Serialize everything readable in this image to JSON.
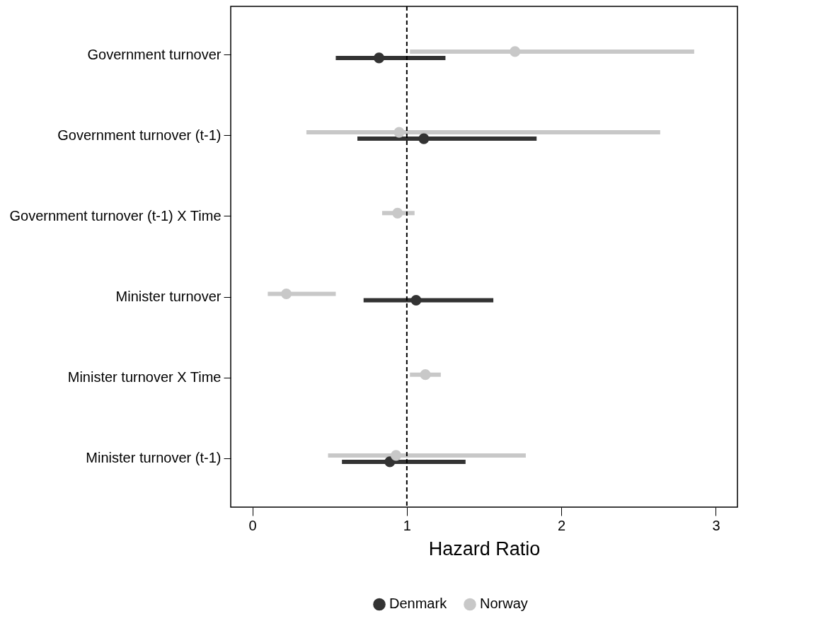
{
  "chart_data": {
    "type": "scatter",
    "orientation": "horizontal",
    "xlabel": "Hazard Ratio",
    "categories": [
      "Government turnover",
      "Government turnover (t-1)",
      "Government turnover (t-1) X Time",
      "Minister turnover",
      "Minister turnover X Time",
      "Minister turnover (t-1)"
    ],
    "series": [
      {
        "name": "Denmark",
        "color": "#333333",
        "values": [
          0.82,
          1.11,
          null,
          1.06,
          null,
          0.89
        ],
        "errors": [
          [
            0.54,
            1.25
          ],
          [
            0.68,
            1.84
          ],
          null,
          [
            0.72,
            1.56
          ],
          null,
          [
            0.58,
            1.38
          ]
        ]
      },
      {
        "name": "Norway",
        "color": "#c8c8c8",
        "values": [
          1.7,
          0.95,
          0.94,
          0.22,
          1.12,
          0.93
        ],
        "errors": [
          [
            1.02,
            2.86
          ],
          [
            0.35,
            2.64
          ],
          [
            0.84,
            1.05
          ],
          [
            0.1,
            0.54
          ],
          [
            1.02,
            1.22
          ],
          [
            0.49,
            1.77
          ]
        ]
      }
    ],
    "xlim": [
      -0.14,
      3.14
    ],
    "xticks": [
      0,
      1,
      2,
      3
    ],
    "ref_lines": [
      {
        "axis": "x",
        "value": 1,
        "color": "#000000",
        "line_style": "dashed"
      }
    ],
    "marker": "circle",
    "legend": "bottom",
    "grid": false
  }
}
